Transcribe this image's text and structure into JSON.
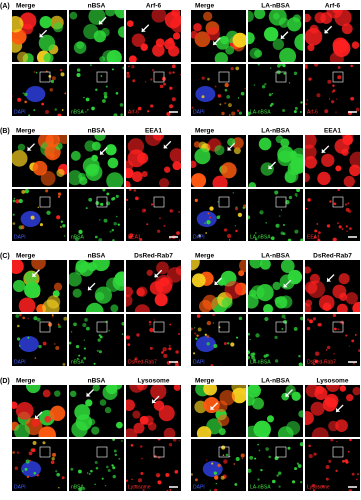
{
  "panels": [
    {
      "label": "(A)",
      "groups": [
        {
          "headers": [
            "Merge",
            "nBSA",
            "Arf-6"
          ],
          "image_labels": [
            "DAPI",
            "nBSA",
            "Arf-6"
          ]
        },
        {
          "headers": [
            "Merge",
            "LA-nBSA",
            "Arf-6"
          ],
          "image_labels": [
            "DAPI",
            "LA-nBSA",
            "Arf-6"
          ]
        }
      ]
    },
    {
      "label": "(B)",
      "groups": [
        {
          "headers": [
            "Merge",
            "nBSA",
            "EEA1"
          ],
          "image_labels": [
            "DAPI",
            "nBSA",
            "EEA1"
          ]
        },
        {
          "headers": [
            "Merge",
            "LA-nBSA",
            "EEA1"
          ],
          "image_labels": [
            "DAPI",
            "LA-nBSA",
            "EEA1"
          ]
        }
      ]
    },
    {
      "label": "(C)",
      "groups": [
        {
          "headers": [
            "Merge",
            "nBSA",
            "DsRed-Rab7"
          ],
          "image_labels": [
            "DAPI",
            "nBSA",
            "DsRed-Rab7"
          ]
        },
        {
          "headers": [
            "Merge",
            "LA-nBSA",
            "DsRed-Rab7"
          ],
          "image_labels": [
            "DAPI",
            "LA-nBSA",
            "DsRed-Rab7"
          ]
        }
      ]
    },
    {
      "label": "(D)",
      "groups": [
        {
          "headers": [
            "Merge",
            "nBSA",
            "Lysosome"
          ],
          "image_labels": [
            "DAPI",
            "nBSA",
            "Lysosome"
          ]
        },
        {
          "headers": [
            "Merge",
            "LA-nBSA",
            "Lysosome"
          ],
          "image_labels": [
            "DAPI",
            "LA-nBSA",
            "Lysosome"
          ]
        }
      ]
    }
  ]
}
